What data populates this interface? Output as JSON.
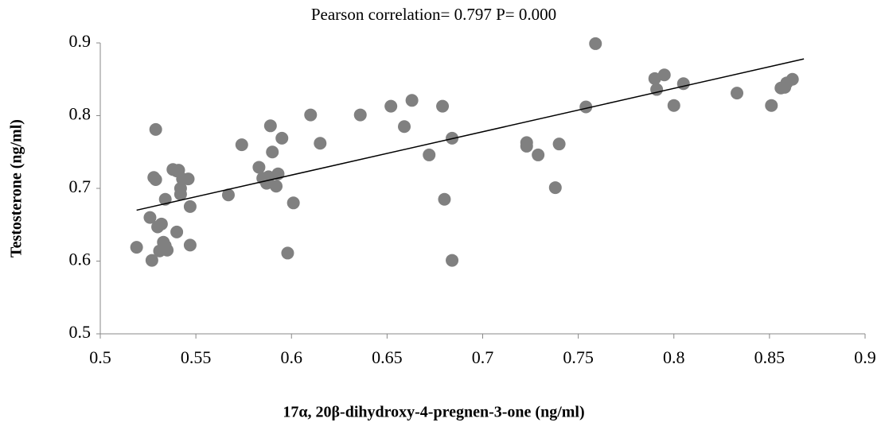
{
  "chart_data": {
    "type": "scatter",
    "title": "Pearson correlation= 0.797  P= 0.000",
    "x_label": "17α, 20β-dihydroxy-4-pregnen-3-one (ng/ml)",
    "y_label": "Testosterone (ng/ml)",
    "color": "#808080",
    "x": [
      0.519,
      0.526,
      0.527,
      0.528,
      0.529,
      0.529,
      0.53,
      0.531,
      0.532,
      0.533,
      0.534,
      0.534,
      0.535,
      0.538,
      0.54,
      0.54,
      0.541,
      0.542,
      0.542,
      0.543,
      0.546,
      0.547,
      0.547,
      0.567,
      0.574,
      0.583,
      0.585,
      0.587,
      0.588,
      0.589,
      0.59,
      0.592,
      0.593,
      0.595,
      0.598,
      0.601,
      0.61,
      0.615,
      0.636,
      0.652,
      0.659,
      0.663,
      0.672,
      0.679,
      0.68,
      0.684,
      0.684,
      0.723,
      0.723,
      0.729,
      0.738,
      0.74,
      0.754,
      0.759,
      0.79,
      0.791,
      0.795,
      0.8,
      0.805,
      0.833,
      0.851,
      0.856,
      0.858,
      0.859,
      0.862
    ],
    "values": [
      0.619,
      0.66,
      0.601,
      0.715,
      0.712,
      0.781,
      0.647,
      0.614,
      0.651,
      0.626,
      0.685,
      0.621,
      0.615,
      0.726,
      0.724,
      0.64,
      0.725,
      0.7,
      0.692,
      0.713,
      0.713,
      0.675,
      0.622,
      0.691,
      0.76,
      0.729,
      0.714,
      0.707,
      0.716,
      0.786,
      0.75,
      0.703,
      0.72,
      0.769,
      0.611,
      0.68,
      0.801,
      0.762,
      0.801,
      0.813,
      0.785,
      0.821,
      0.746,
      0.813,
      0.685,
      0.601,
      0.769,
      0.763,
      0.758,
      0.746,
      0.701,
      0.761,
      0.812,
      0.899,
      0.851,
      0.836,
      0.856,
      0.814,
      0.844,
      0.831,
      0.814,
      0.838,
      0.839,
      0.845,
      0.85
    ],
    "trendline": {
      "x": [
        0.519,
        0.868
      ],
      "values": [
        0.67,
        0.878
      ],
      "color": "#000000"
    },
    "xlim": [
      0.5,
      0.9
    ],
    "xticks": [
      0.5,
      0.55,
      0.6,
      0.65,
      0.7,
      0.75,
      0.8,
      0.85,
      0.9
    ],
    "ylim": [
      0.5,
      0.9
    ],
    "yticks": [
      0.5,
      0.6,
      0.7,
      0.8,
      0.9
    ],
    "grid": false
  }
}
